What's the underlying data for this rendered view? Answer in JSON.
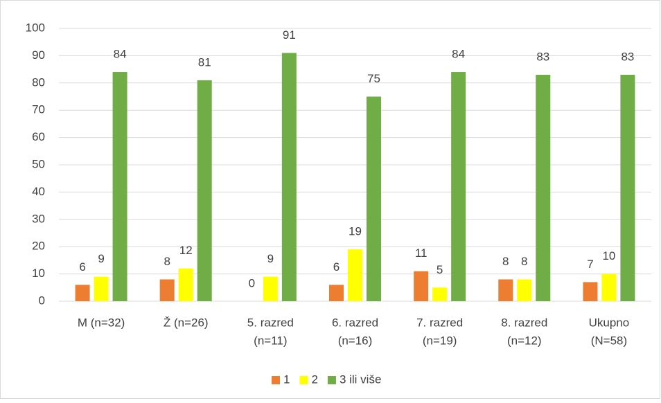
{
  "chart_data": {
    "type": "bar",
    "categories": [
      [
        "M (n=32)"
      ],
      [
        "Ž (n=26)"
      ],
      [
        "5. razred",
        "(n=11)"
      ],
      [
        "6. razred",
        "(n=16)"
      ],
      [
        "7. razred",
        "(n=19)"
      ],
      [
        "8. razred",
        "(n=12)"
      ],
      [
        "Ukupno",
        "(N=58)"
      ]
    ],
    "series": [
      {
        "name": "1",
        "color": "#ed7d31",
        "values": [
          6,
          8,
          0,
          6,
          11,
          8,
          7
        ]
      },
      {
        "name": "2",
        "color": "#ffff00",
        "values": [
          9,
          12,
          9,
          19,
          5,
          8,
          10
        ]
      },
      {
        "name": "3 ili više",
        "color": "#70ad47",
        "values": [
          84,
          81,
          91,
          75,
          84,
          83,
          83
        ]
      }
    ],
    "ylim": [
      0,
      100
    ],
    "yticks": [
      0,
      10,
      20,
      30,
      40,
      50,
      60,
      70,
      80,
      90,
      100
    ],
    "grid": true,
    "legend": "bottom"
  }
}
